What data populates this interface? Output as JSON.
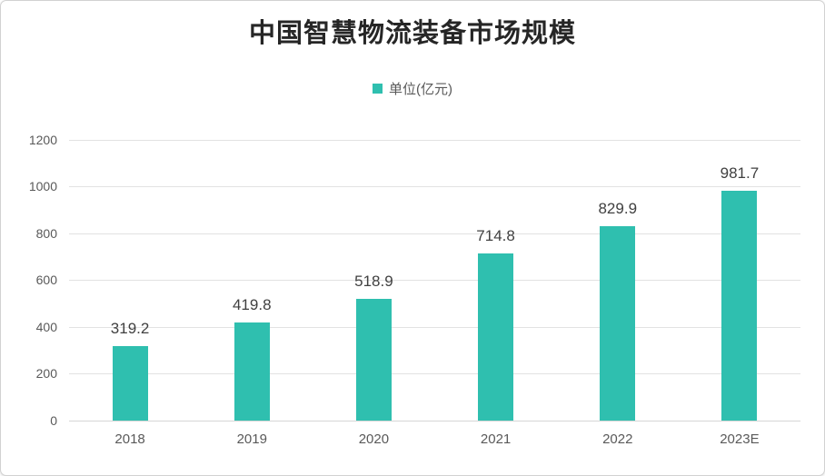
{
  "title": "中国智慧物流装备市场规模",
  "legend": {
    "label": "单位(亿元)",
    "swatch_color": "#2fbfaf"
  },
  "chart_data": {
    "type": "bar",
    "title": "中国智慧物流装备市场规模",
    "legend_entries": [
      "单位(亿元)"
    ],
    "legend_position": "top",
    "categories": [
      "2018",
      "2019",
      "2020",
      "2021",
      "2022",
      "2023E"
    ],
    "values": [
      319.2,
      419.8,
      518.9,
      714.8,
      829.9,
      981.7
    ],
    "value_labels": [
      "319.2",
      "419.8",
      "518.9",
      "714.8",
      "829.9",
      "981.7"
    ],
    "xlabel": "",
    "ylabel": "",
    "ylim": [
      0,
      1200
    ],
    "yticks": [
      0,
      200,
      400,
      600,
      800,
      1000,
      1200
    ],
    "grid": true,
    "bar_color": "#2fbfaf",
    "value_label_color": "#404040",
    "axis_text_color": "#595959",
    "gridline_color": "#e2e2e2",
    "title_color": "#262626"
  }
}
